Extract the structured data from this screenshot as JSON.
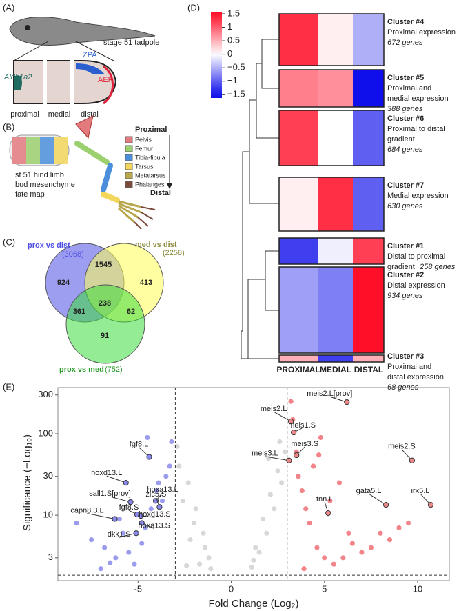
{
  "panels": {
    "a": {
      "label": "(A)",
      "stage": "stage 51 tadpole",
      "zpa": "ZPA",
      "aldh": "Aldh1a2",
      "aer": "AER",
      "regions": [
        "proximal",
        "medial",
        "distal"
      ]
    },
    "b": {
      "label": "(B)",
      "caption": [
        "st 51 hind limb",
        "bud mesenchyme",
        "fate map"
      ],
      "top": "Proximal",
      "bottom": "Distal",
      "legend": [
        {
          "name": "Pelvis",
          "color": "#e27a7e"
        },
        {
          "name": "Femur",
          "color": "#9ccf6e"
        },
        {
          "name": "Tibia-fibula",
          "color": "#4b8fdc"
        },
        {
          "name": "Tarsus",
          "color": "#f3d65c"
        },
        {
          "name": "Metatarsus",
          "color": "#b8a74d"
        },
        {
          "name": "Phalanges",
          "color": "#7a4a3c"
        }
      ]
    },
    "c": {
      "label": "(C)",
      "sets": [
        {
          "name": "prox vs dist",
          "count": "(3068)",
          "color": "#4f4fe6"
        },
        {
          "name": "med vs dist",
          "count": "(2258)",
          "color": "#8a8a3a"
        },
        {
          "name": "prox vs med",
          "count": "(752)",
          "color": "#2a9a2a"
        }
      ],
      "regions": [
        924,
        1545,
        413,
        238,
        361,
        62,
        91
      ]
    },
    "d": {
      "label": "(D)"
    },
    "e": {
      "label": "(E)"
    }
  },
  "chart_data": [
    {
      "type": "heatmap",
      "categories": [
        "PROXIMAL",
        "MEDIAL",
        "DISTAL"
      ],
      "rows": [
        {
          "name": "Cluster #4",
          "description": [
            "Proximal expression"
          ],
          "genes": "672 genes",
          "values": [
            1.3,
            0.1,
            -0.5
          ]
        },
        {
          "name": "Cluster #5",
          "description": [
            "Proximal and",
            "medial expression"
          ],
          "genes": "388 genes",
          "values": [
            0.8,
            0.7,
            -1.5
          ]
        },
        {
          "name": "Cluster #6",
          "description": [
            "Proximal to distal",
            "gradient"
          ],
          "genes": "684 genes",
          "values": [
            1.2,
            0.0,
            -1.0
          ]
        },
        {
          "name": "Cluster #7",
          "description": [
            "Medial expression"
          ],
          "genes": "630 genes",
          "values": [
            0.1,
            1.3,
            -1.0
          ]
        },
        {
          "name": "Cluster #1",
          "description": [
            "Distal to proximal",
            "gradient"
          ],
          "genes": "258 genes",
          "values": [
            -1.2,
            -0.1,
            1.2
          ]
        },
        {
          "name": "Cluster #2",
          "description": [
            "Distal expression"
          ],
          "genes": "934 genes",
          "values": [
            -0.6,
            -0.8,
            1.5
          ]
        },
        {
          "name": "Cluster #3",
          "description": [
            "Proximal and",
            "distal expression"
          ],
          "genes": "68 genes",
          "values": [
            0.5,
            -1.2,
            0.5
          ]
        }
      ],
      "clim": [
        -1.62,
        1.55
      ],
      "cticks": [
        1.5,
        1,
        0.5,
        0,
        {
          "value": -0.5,
          "label": "−0.5"
        },
        {
          "value": -1,
          "label": "−1"
        },
        {
          "value": -1.5,
          "label": "−1.5"
        }
      ]
    },
    {
      "type": "scatter",
      "xlabel": "Fold Change (Log₂)",
      "ylabel": "Significance (−Log₁₀)",
      "ylog": true,
      "xlim": [
        -9.3,
        11.7
      ],
      "ylim": [
        1.57,
        370
      ],
      "xticks": [
        -5,
        0,
        5,
        10
      ],
      "yticks": [
        3,
        10,
        30,
        100,
        300
      ],
      "vlines": [
        -3,
        3
      ],
      "hline": 1.83,
      "series": [
        {
          "color": "#b8b8b8",
          "x": [
            -2.8,
            -2.3,
            -1.9,
            -1.5,
            -1.2,
            -2.6,
            -2.0,
            -1.4,
            -2.9,
            -1.7,
            -2.2,
            -1.1,
            1.1,
            1.5,
            1.9,
            2.3,
            2.7,
            1.3,
            1.7,
            2.1,
            2.5,
            2.9,
            1.2,
            2.0,
            2.6,
            -2.4
          ],
          "values": [
            40,
            25,
            12,
            6,
            3,
            15,
            8,
            4,
            70,
            2.5,
            5,
            2.2,
            2.3,
            3.5,
            6,
            12,
            25,
            4,
            9,
            18,
            35,
            60,
            2.8,
            50,
            80,
            2.4
          ]
        },
        {
          "color": "#4a4ae0",
          "x": [
            -8.3,
            -7.5,
            -6.8,
            -6.2,
            -5.8,
            -5.2,
            -4.6,
            -4.0,
            -3.5,
            -3.2,
            -7.0,
            -6.0,
            -5.5,
            -4.8,
            -4.3,
            -3.7,
            -3.3,
            -4.5,
            -3.9,
            -6.5
          ],
          "values": [
            8,
            5,
            4,
            3,
            6,
            2.5,
            7,
            20,
            30,
            80,
            2.2,
            9,
            3.5,
            4.5,
            12,
            15,
            40,
            90,
            25,
            2.6
          ]
        },
        {
          "color": "#e8202a",
          "x": [
            3.2,
            3.5,
            3.8,
            4.2,
            4.6,
            5.0,
            5.5,
            6.0,
            6.5,
            7.0,
            7.5,
            8.0,
            8.5,
            9.0,
            9.5,
            3.3,
            3.6,
            4.0,
            4.4,
            4.8,
            5.3,
            5.8,
            6.3,
            3.9,
            4.7
          ],
          "values": [
            250,
            60,
            20,
            8,
            4,
            3,
            2.5,
            3,
            4.5,
            3.5,
            4,
            6,
            5,
            7,
            8,
            150,
            30,
            12,
            40,
            90,
            15,
            25,
            6,
            2.2,
            55
          ]
        }
      ],
      "genes": {
        "names": [
          "meis2.L[prov]",
          "meis2.L",
          "meis1.S",
          "meis3.S",
          "meis3.L",
          "meis2.S",
          "gata5.L",
          "irx5.L",
          "tnn.L",
          "fgf8.L",
          "hoxd13.L",
          "hoxa13.L",
          "sall1.S[prov]",
          "zic5.S",
          "capn8.3.L",
          "fgf8.S",
          "hoxd13.S",
          "hoxa13.S",
          "dkk1.S"
        ],
        "x": [
          6.2,
          3.2,
          3.35,
          3.5,
          3.1,
          9.7,
          8.3,
          10.7,
          5.2,
          -4.4,
          -5.65,
          -4.05,
          -5.4,
          -3.85,
          -6.25,
          -5.05,
          -4.85,
          -4.8,
          -5.1
        ],
        "values": [
          245,
          142,
          104,
          54.6,
          47,
          47,
          13.4,
          13.4,
          10.6,
          52,
          25,
          15,
          14.5,
          12.6,
          9,
          10.2,
          9.8,
          8,
          6
        ]
      }
    }
  ]
}
